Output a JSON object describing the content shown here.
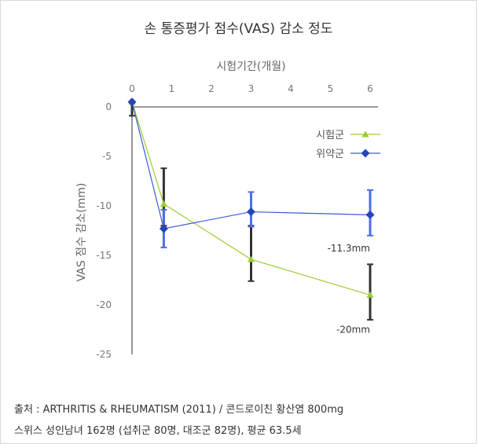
{
  "chart_data": {
    "type": "line",
    "title": "손 통증평가 점수(VAS) 감소 정도",
    "xlabel": "시험기간(개월)",
    "ylabel": "VAS 점수 감소(mm)",
    "x_ticks": [
      0,
      1,
      2,
      3,
      4,
      5,
      6
    ],
    "y_ticks": [
      0,
      -5,
      -10,
      -15,
      -20,
      -25
    ],
    "xlim": [
      0,
      6
    ],
    "ylim": [
      -25,
      0
    ],
    "legend_position": "top-right",
    "series": [
      {
        "name": "시험군",
        "color": "#9acd32",
        "marker": "triangle",
        "x": [
          0,
          0.8,
          3,
          6
        ],
        "y": [
          0.5,
          -9.8,
          -15.4,
          -19.0
        ],
        "err_low": [
          -0.9,
          -12.0,
          -17.6,
          -21.5
        ],
        "err_high": [
          0.4,
          -6.2,
          -12.0,
          -15.9
        ],
        "err_color": "#333333"
      },
      {
        "name": "위약군",
        "color": "#3b5bdb",
        "marker": "diamond",
        "x": [
          0,
          0.8,
          3,
          6
        ],
        "y": [
          0.5,
          -12.3,
          -10.6,
          -10.9
        ],
        "err_low": [
          0.5,
          -14.2,
          -12.1,
          -13.0
        ],
        "err_high": [
          0.5,
          -10.4,
          -8.6,
          -8.4
        ],
        "err_color": "#4d6fe8"
      }
    ],
    "annotations": [
      {
        "text": "-11.3mm",
        "x": 6,
        "y": -14.3
      },
      {
        "text": "-20mm",
        "x": 6,
        "y": -22.5
      }
    ]
  },
  "source": {
    "line1": "출처 :  ARTHRITIS & RHEUMATISM (2011) / 콘드로이친 황산염 800mg",
    "line2": "스위스 성인남녀 162명 (섭취군 80명, 대조군 82명), 평균 63.5세"
  }
}
